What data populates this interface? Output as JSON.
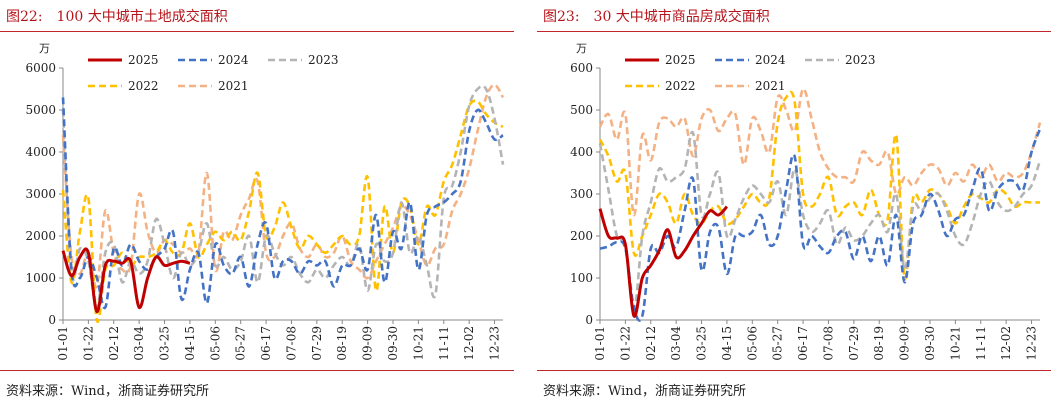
{
  "panels": [
    {
      "figure_label": "图22:",
      "title": "100 大中城市土地成交面积",
      "source": "资料来源：Wind，浙商证券研究所"
    },
    {
      "figure_label": "图23:",
      "title": "30 大中城市商品房成交面积",
      "source": "资料来源：Wind，浙商证券研究所"
    }
  ],
  "chart_data": [
    {
      "type": "line",
      "title": "100 大中城市土地成交面积",
      "ylabel": "万",
      "ylim": [
        0,
        6000
      ],
      "yticks": [
        0,
        1000,
        2000,
        3000,
        4000,
        5000,
        6000
      ],
      "xticks": [
        "01-01",
        "01-22",
        "02-12",
        "03-04",
        "03-25",
        "04-15",
        "05-06",
        "05-27",
        "06-17",
        "07-08",
        "07-29",
        "08-19",
        "09-09",
        "09-30",
        "10-21",
        "11-11",
        "12-02",
        "12-23"
      ],
      "x_range_weeks": [
        0,
        52
      ],
      "grid": false,
      "legend_placement": "top-center",
      "series": [
        {
          "name": "2025",
          "color": "#c00000",
          "style": "solid",
          "x": [
            0,
            1,
            2,
            3,
            4,
            5,
            6,
            7,
            8,
            9,
            10,
            11,
            12,
            13,
            14,
            15
          ],
          "values": [
            1650,
            1050,
            1500,
            1600,
            200,
            1300,
            1400,
            1350,
            1400,
            300,
            1000,
            1500,
            1300,
            1350,
            1400,
            1350
          ]
        },
        {
          "name": "2024",
          "color": "#4472c4",
          "style": "dash",
          "x": [
            0,
            1,
            2,
            3,
            4,
            5,
            6,
            7,
            8,
            9,
            10,
            11,
            12,
            13,
            14,
            15,
            16,
            17,
            18,
            19,
            20,
            21,
            22,
            23,
            24,
            25,
            26,
            27,
            28,
            29,
            30,
            31,
            32,
            33,
            34,
            35,
            36,
            37,
            38,
            39,
            40,
            41,
            42,
            43,
            44,
            45,
            46,
            47,
            48,
            49,
            50,
            51,
            52
          ],
          "values": [
            5300,
            1200,
            1000,
            1500,
            1000,
            300,
            1700,
            1300,
            1800,
            1400,
            1200,
            1500,
            1700,
            2100,
            500,
            1200,
            1600,
            400,
            1800,
            1300,
            1100,
            1500,
            800,
            1800,
            2300,
            1000,
            1400,
            1400,
            1100,
            1400,
            1300,
            1400,
            800,
            1300,
            1300,
            1700,
            1200,
            2500,
            900,
            2100,
            1700,
            2800,
            1200,
            2500,
            2700,
            2800,
            3000,
            3300,
            4500,
            5000,
            4700,
            4300,
            4400
          ]
        },
        {
          "name": "2023",
          "color": "#b4b4b4",
          "style": "dash",
          "x": [
            0,
            1,
            2,
            3,
            4,
            5,
            6,
            7,
            8,
            9,
            10,
            11,
            12,
            13,
            14,
            15,
            16,
            17,
            18,
            19,
            20,
            21,
            22,
            23,
            24,
            25,
            26,
            27,
            28,
            29,
            30,
            31,
            32,
            33,
            34,
            35,
            36,
            37,
            38,
            39,
            40,
            41,
            42,
            43,
            44,
            45,
            46,
            47,
            48,
            49,
            50,
            51,
            52
          ],
          "values": [
            5000,
            1100,
            1700,
            1400,
            300,
            1600,
            1800,
            900,
            1400,
            1100,
            1400,
            2400,
            1800,
            1000,
            1600,
            1300,
            1600,
            2300,
            1300,
            1500,
            1200,
            1400,
            2000,
            900,
            2000,
            1600,
            1300,
            1500,
            1100,
            900,
            1200,
            1000,
            1300,
            1500,
            1300,
            1800,
            700,
            1800,
            1400,
            1600,
            2800,
            1600,
            2000,
            1300,
            600,
            2900,
            3200,
            4000,
            5100,
            5500,
            5500,
            4800,
            3700
          ]
        },
        {
          "name": "2022",
          "color": "#ffc000",
          "style": "dash",
          "x": [
            0,
            1,
            2,
            3,
            4,
            5,
            6,
            7,
            8,
            9,
            10,
            11,
            12,
            13,
            14,
            15,
            16,
            17,
            18,
            19,
            20,
            21,
            22,
            23,
            24,
            25,
            26,
            27,
            28,
            29,
            30,
            31,
            32,
            33,
            34,
            35,
            36,
            37,
            38,
            39,
            40,
            41,
            42,
            43,
            44,
            45,
            46,
            47,
            48,
            49,
            50,
            51,
            52
          ],
          "values": [
            3100,
            900,
            2100,
            2900,
            0,
            1200,
            1300,
            1600,
            1300,
            1500,
            1500,
            1600,
            1900,
            1600,
            1600,
            2300,
            1500,
            1800,
            2100,
            1900,
            2100,
            1900,
            2600,
            3500,
            2000,
            2200,
            2800,
            2200,
            1700,
            2000,
            1800,
            1600,
            1800,
            2000,
            1800,
            2000,
            3400,
            700,
            2700,
            1600,
            2800,
            2700,
            1800,
            2700,
            2500,
            3300,
            3700,
            4400,
            5100,
            5200,
            4900,
            4700,
            4600
          ]
        },
        {
          "name": "2021",
          "color": "#f4b183",
          "style": "dash",
          "x": [
            0,
            1,
            2,
            3,
            4,
            5,
            6,
            7,
            8,
            9,
            10,
            11,
            12,
            13,
            14,
            15,
            16,
            17,
            18,
            19,
            20,
            21,
            22,
            23,
            24,
            25,
            26,
            27,
            28,
            29,
            30,
            31,
            32,
            33,
            34,
            35,
            36,
            37,
            38,
            39,
            40,
            41,
            42,
            43,
            44,
            45,
            46,
            47,
            48,
            49,
            50,
            51,
            52
          ],
          "values": [
            4400,
            1500,
            1100,
            1600,
            800,
            2600,
            1600,
            1200,
            1300,
            3000,
            2100,
            1600,
            1900,
            1800,
            1600,
            1700,
            1600,
            3500,
            1200,
            2100,
            1900,
            2500,
            2900,
            3300,
            1600,
            1500,
            2000,
            2300,
            1700,
            1500,
            1800,
            1500,
            1600,
            2000,
            1400,
            1200,
            1000,
            1400,
            1800,
            2200,
            2700,
            2500,
            1900,
            1300,
            1700,
            1800,
            2600,
            3000,
            3600,
            4500,
            5300,
            5600,
            5300
          ]
        }
      ]
    },
    {
      "type": "line",
      "title": "30 大中城市商品房成交面积",
      "ylabel": "万",
      "ylim": [
        0,
        600
      ],
      "yticks": [
        0,
        100,
        200,
        300,
        400,
        500,
        600
      ],
      "xticks": [
        "01-01",
        "01-22",
        "02-12",
        "03-04",
        "03-25",
        "04-15",
        "05-06",
        "05-27",
        "06-17",
        "07-08",
        "07-29",
        "08-19",
        "09-09",
        "09-30",
        "10-21",
        "11-11",
        "12-02",
        "12-23"
      ],
      "x_range_weeks": [
        0,
        52
      ],
      "grid": false,
      "legend_placement": "top-center",
      "series": [
        {
          "name": "2025",
          "color": "#c00000",
          "style": "solid",
          "x": [
            0,
            1,
            2,
            3,
            4,
            5,
            6,
            7,
            8,
            9,
            10,
            11,
            12,
            13,
            14,
            15
          ],
          "values": [
            265,
            200,
            195,
            180,
            10,
            100,
            130,
            165,
            215,
            150,
            165,
            200,
            230,
            260,
            250,
            270
          ]
        },
        {
          "name": "2024",
          "color": "#4472c4",
          "style": "dash",
          "x": [
            0,
            1,
            2,
            3,
            4,
            5,
            6,
            7,
            8,
            9,
            10,
            11,
            12,
            13,
            14,
            15,
            16,
            17,
            18,
            19,
            20,
            21,
            22,
            23,
            24,
            25,
            26,
            27,
            28,
            29,
            30,
            31,
            32,
            33,
            34,
            35,
            36,
            37,
            38,
            39,
            40,
            41,
            42,
            43,
            44,
            45,
            46,
            47,
            48,
            49,
            50,
            51,
            52
          ],
          "values": [
            170,
            175,
            185,
            170,
            30,
            10,
            170,
            160,
            200,
            175,
            260,
            335,
            120,
            210,
            220,
            110,
            200,
            200,
            210,
            250,
            180,
            200,
            310,
            390,
            180,
            200,
            175,
            160,
            200,
            210,
            145,
            200,
            140,
            200,
            130,
            250,
            90,
            230,
            250,
            300,
            260,
            200,
            240,
            250,
            310,
            360,
            260,
            310,
            330,
            330,
            310,
            400,
            455
          ]
        },
        {
          "name": "2023",
          "color": "#b4b4b4",
          "style": "dash",
          "x": [
            0,
            1,
            2,
            3,
            4,
            5,
            6,
            7,
            8,
            9,
            10,
            11,
            12,
            13,
            14,
            15,
            16,
            17,
            18,
            19,
            20,
            21,
            22,
            23,
            24,
            25,
            26,
            27,
            28,
            29,
            30,
            31,
            32,
            33,
            34,
            35,
            36,
            37,
            38,
            39,
            40,
            41,
            42,
            43,
            44,
            45,
            46,
            47,
            48,
            49,
            50,
            51,
            52
          ],
          "values": [
            420,
            310,
            200,
            180,
            20,
            200,
            280,
            360,
            330,
            340,
            360,
            445,
            250,
            300,
            350,
            200,
            240,
            290,
            320,
            300,
            280,
            330,
            250,
            360,
            250,
            210,
            230,
            260,
            180,
            220,
            190,
            200,
            230,
            250,
            210,
            300,
            120,
            270,
            260,
            290,
            300,
            260,
            200,
            180,
            230,
            300,
            330,
            280,
            260,
            270,
            300,
            320,
            380
          ]
        },
        {
          "name": "2022",
          "color": "#ffc000",
          "style": "dash",
          "x": [
            0,
            1,
            2,
            3,
            4,
            5,
            6,
            7,
            8,
            9,
            10,
            11,
            12,
            13,
            14,
            15,
            16,
            17,
            18,
            19,
            20,
            21,
            22,
            23,
            24,
            25,
            26,
            27,
            28,
            29,
            30,
            31,
            32,
            33,
            34,
            35,
            36,
            37,
            38,
            39,
            40,
            41,
            42,
            43,
            44,
            45,
            46,
            47,
            48,
            49,
            50,
            51,
            52
          ],
          "values": [
            430,
            390,
            330,
            350,
            160,
            200,
            250,
            300,
            280,
            230,
            300,
            250,
            230,
            260,
            270,
            230,
            240,
            270,
            300,
            280,
            290,
            470,
            530,
            520,
            300,
            270,
            300,
            340,
            250,
            270,
            280,
            250,
            310,
            250,
            240,
            440,
            100,
            290,
            280,
            310,
            300,
            270,
            230,
            270,
            300,
            290,
            280,
            310,
            300,
            270,
            280,
            280,
            280
          ]
        },
        {
          "name": "2021",
          "color": "#f4b183",
          "style": "dash",
          "x": [
            0,
            1,
            2,
            3,
            4,
            5,
            6,
            7,
            8,
            9,
            10,
            11,
            12,
            13,
            14,
            15,
            16,
            17,
            18,
            19,
            20,
            21,
            22,
            23,
            24,
            25,
            26,
            27,
            28,
            29,
            30,
            31,
            32,
            33,
            34,
            35,
            36,
            37,
            38,
            39,
            40,
            41,
            42,
            43,
            44,
            45,
            46,
            47,
            48,
            49,
            50,
            51,
            52
          ],
          "values": [
            460,
            490,
            430,
            490,
            250,
            440,
            380,
            470,
            480,
            460,
            480,
            390,
            480,
            500,
            450,
            480,
            490,
            370,
            480,
            450,
            400,
            530,
            500,
            450,
            550,
            480,
            400,
            360,
            340,
            340,
            330,
            400,
            380,
            370,
            400,
            300,
            340,
            320,
            350,
            370,
            360,
            320,
            350,
            330,
            370,
            340,
            370,
            330,
            350,
            340,
            350,
            400,
            470
          ]
        }
      ]
    }
  ]
}
